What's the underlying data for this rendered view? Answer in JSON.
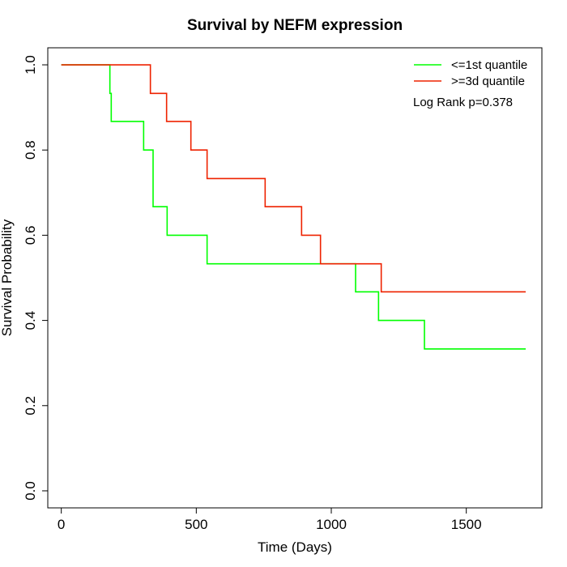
{
  "chart_data": {
    "type": "line",
    "title": "Survival by NEFM expression",
    "xlabel": "Time (Days)",
    "ylabel": "Survival Probability",
    "xlim": [
      -50,
      1780
    ],
    "ylim": [
      -0.04,
      1.04
    ],
    "x_ticks": [
      0,
      500,
      1000,
      1500
    ],
    "y_ticks": [
      0.0,
      0.2,
      0.4,
      0.6,
      0.8,
      1.0
    ],
    "x_tick_labels": [
      "0",
      "500",
      "1000",
      "1500"
    ],
    "y_tick_labels": [
      "0.0",
      "0.2",
      "0.4",
      "0.6",
      "0.8",
      "1.0"
    ],
    "grid": false,
    "legend_position": "top-right",
    "annotation": "Log Rank p=0.378",
    "series": [
      {
        "name": "<=1st quantile",
        "color": "#00ff00",
        "steps": [
          [
            0,
            1.0
          ],
          [
            180,
            0.933
          ],
          [
            185,
            0.867
          ],
          [
            305,
            0.8
          ],
          [
            340,
            0.667
          ],
          [
            392,
            0.6
          ],
          [
            540,
            0.533
          ],
          [
            1090,
            0.467
          ],
          [
            1175,
            0.4
          ],
          [
            1345,
            0.333
          ],
          [
            1720,
            0.333
          ]
        ]
      },
      {
        "name": ">=3d quantile",
        "color": "#ee2200",
        "steps": [
          [
            0,
            1.0
          ],
          [
            330,
            0.933
          ],
          [
            390,
            0.867
          ],
          [
            480,
            0.8
          ],
          [
            540,
            0.733
          ],
          [
            755,
            0.667
          ],
          [
            890,
            0.6
          ],
          [
            960,
            0.533
          ],
          [
            1185,
            0.467
          ],
          [
            1720,
            0.467
          ]
        ]
      }
    ]
  }
}
